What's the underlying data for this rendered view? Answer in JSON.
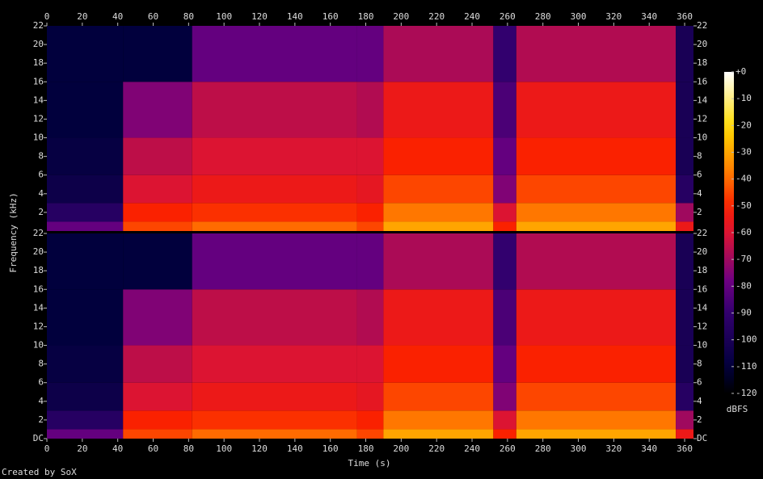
{
  "chart_data": {
    "type": "spectrogram",
    "xlabel": "Time (s)",
    "ylabel": "Frequency (kHz)",
    "colorbar_label": "dBFS",
    "footer": "Created by SoX",
    "xlim": [
      0,
      365
    ],
    "xticks": [
      0,
      20,
      40,
      60,
      80,
      100,
      120,
      140,
      160,
      180,
      200,
      220,
      240,
      260,
      280,
      300,
      320,
      340,
      360
    ],
    "ylim": [
      0,
      22
    ],
    "clim": [
      -120,
      0
    ],
    "cticks": [
      {
        "value": 0,
        "label": "+0"
      },
      -10,
      -20,
      -30,
      -40,
      -50,
      -60,
      -70,
      -80,
      -90,
      -100,
      -110,
      -120
    ],
    "time_edges": [
      0,
      43,
      82,
      175,
      190,
      252,
      265,
      355,
      365
    ],
    "freq_edges": [
      0,
      1,
      3,
      6,
      10,
      16,
      22
    ],
    "channels": [
      {
        "yticks": [
          2,
          4,
          6,
          8,
          10,
          12,
          14,
          16,
          18,
          20,
          22
        ],
        "values": [
          [
            -80,
            -95,
            -105,
            -108,
            -110,
            -110
          ],
          [
            -45,
            -50,
            -60,
            -65,
            -75,
            -110
          ],
          [
            -40,
            -48,
            -55,
            -60,
            -65,
            -80
          ],
          [
            -45,
            -50,
            -57,
            -60,
            -67,
            -80
          ],
          [
            -30,
            -38,
            -45,
            -50,
            -55,
            -68
          ],
          [
            -50,
            -60,
            -75,
            -80,
            -85,
            -90
          ],
          [
            -30,
            -38,
            -45,
            -50,
            -55,
            -67
          ],
          [
            -55,
            -70,
            -95,
            -100,
            -100,
            -100
          ]
        ]
      },
      {
        "yticks": [
          {
            "value": 0,
            "label": "DC"
          },
          2,
          4,
          6,
          8,
          10,
          12,
          14,
          16,
          18,
          20,
          22
        ],
        "values": [
          [
            -80,
            -95,
            -105,
            -108,
            -110,
            -110
          ],
          [
            -45,
            -50,
            -60,
            -65,
            -75,
            -110
          ],
          [
            -40,
            -48,
            -55,
            -60,
            -65,
            -80
          ],
          [
            -45,
            -50,
            -57,
            -60,
            -67,
            -80
          ],
          [
            -30,
            -38,
            -45,
            -50,
            -55,
            -68
          ],
          [
            -50,
            -60,
            -75,
            -80,
            -85,
            -90
          ],
          [
            -30,
            -38,
            -45,
            -50,
            -55,
            -67
          ],
          [
            -55,
            -70,
            -95,
            -100,
            -100,
            -100
          ]
        ]
      }
    ]
  }
}
